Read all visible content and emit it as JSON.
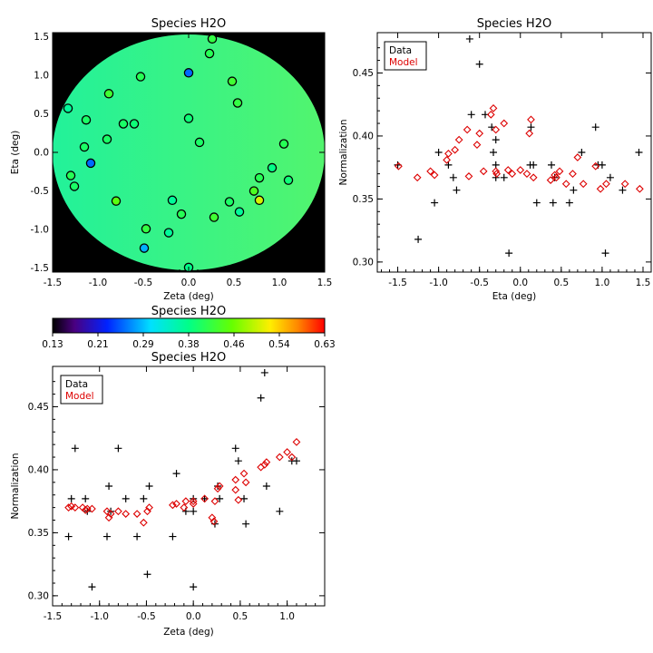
{
  "colors": {
    "data": "#000000",
    "model": "#dd0000",
    "map_background": "#000000",
    "map_fill_low": "#22f29a",
    "map_fill_high": "#52f46e"
  },
  "chart_data": [
    {
      "id": "map",
      "type": "scatter",
      "title": "Species H2O",
      "xlabel": "Zeta (deg)",
      "ylabel": "Eta (deg)",
      "xlim": [
        -1.5,
        1.5
      ],
      "ylim": [
        -1.55,
        1.55
      ],
      "xticks": [
        "-1.5",
        "-1.0",
        "-0.5",
        "0.0",
        "0.5",
        "1.0",
        "1.5"
      ],
      "yticks": [
        "-1.5",
        "-1.0",
        "-0.5",
        "0.0",
        "0.5",
        "1.0",
        "1.5"
      ],
      "background": "black with circular colour-mapped field",
      "points": [
        {
          "x": 0.26,
          "y": 1.47,
          "v": 0.42
        },
        {
          "x": 0.23,
          "y": 1.28,
          "v": 0.41
        },
        {
          "x": -0.53,
          "y": 0.98,
          "v": 0.41
        },
        {
          "x": 0.0,
          "y": 1.03,
          "v": 0.26
        },
        {
          "x": 0.48,
          "y": 0.92,
          "v": 0.43
        },
        {
          "x": -0.88,
          "y": 0.76,
          "v": 0.43
        },
        {
          "x": 0.54,
          "y": 0.64,
          "v": 0.42
        },
        {
          "x": -1.33,
          "y": 0.57,
          "v": 0.37
        },
        {
          "x": -1.13,
          "y": 0.42,
          "v": 0.4
        },
        {
          "x": 0.0,
          "y": 0.44,
          "v": 0.39
        },
        {
          "x": -0.72,
          "y": 0.37,
          "v": 0.4
        },
        {
          "x": -0.6,
          "y": 0.37,
          "v": 0.39
        },
        {
          "x": -0.9,
          "y": 0.17,
          "v": 0.4
        },
        {
          "x": 0.12,
          "y": 0.13,
          "v": 0.4
        },
        {
          "x": -1.15,
          "y": 0.07,
          "v": 0.4
        },
        {
          "x": 1.05,
          "y": 0.11,
          "v": 0.41
        },
        {
          "x": -1.08,
          "y": -0.14,
          "v": 0.26
        },
        {
          "x": 0.92,
          "y": -0.2,
          "v": 0.38
        },
        {
          "x": -1.3,
          "y": -0.3,
          "v": 0.41
        },
        {
          "x": 0.78,
          "y": -0.33,
          "v": 0.41
        },
        {
          "x": 1.1,
          "y": -0.36,
          "v": 0.39
        },
        {
          "x": -1.26,
          "y": -0.44,
          "v": 0.4
        },
        {
          "x": 0.72,
          "y": -0.5,
          "v": 0.44
        },
        {
          "x": -0.8,
          "y": -0.63,
          "v": 0.45
        },
        {
          "x": 0.78,
          "y": -0.62,
          "v": 0.51
        },
        {
          "x": -0.18,
          "y": -0.62,
          "v": 0.37
        },
        {
          "x": 0.45,
          "y": -0.64,
          "v": 0.4
        },
        {
          "x": 0.56,
          "y": -0.77,
          "v": 0.37
        },
        {
          "x": -0.08,
          "y": -0.8,
          "v": 0.41
        },
        {
          "x": 0.28,
          "y": -0.84,
          "v": 0.43
        },
        {
          "x": -0.47,
          "y": -0.99,
          "v": 0.42
        },
        {
          "x": -0.22,
          "y": -1.04,
          "v": 0.37
        },
        {
          "x": -0.49,
          "y": -1.24,
          "v": 0.29
        },
        {
          "x": 0.0,
          "y": -1.49,
          "v": 0.38
        }
      ]
    },
    {
      "id": "colorbar",
      "type": "colorbar",
      "title": "Species H2O",
      "vmin": 0.13,
      "vmax": 0.63,
      "tick_labels": [
        "0.13",
        "0.21",
        "0.29",
        "0.38",
        "0.46",
        "0.54",
        "0.63"
      ],
      "colormap": "rainbow"
    },
    {
      "id": "eta_plot",
      "type": "scatter",
      "title": "Species H2O",
      "xlabel": "Eta (deg)",
      "ylabel": "Normalization",
      "xlim": [
        -1.75,
        1.6
      ],
      "ylim": [
        0.292,
        0.482
      ],
      "xticks": [
        "-1.5",
        "-1.0",
        "-0.5",
        "0.0",
        "0.5",
        "1.0",
        "1.5"
      ],
      "yticks": [
        "0.30",
        "0.35",
        "0.40",
        "0.45"
      ],
      "legend": {
        "placement": "top-left",
        "entries": [
          "Data",
          "Model"
        ]
      },
      "series": [
        {
          "name": "Data",
          "marker": "plus",
          "points": [
            [
              -1.5,
              0.377
            ],
            [
              -1.25,
              0.318
            ],
            [
              -1.05,
              0.347
            ],
            [
              -1.0,
              0.387
            ],
            [
              -0.88,
              0.377
            ],
            [
              -0.82,
              0.367
            ],
            [
              -0.78,
              0.357
            ],
            [
              -0.62,
              0.477
            ],
            [
              -0.6,
              0.417
            ],
            [
              -0.5,
              0.457
            ],
            [
              -0.43,
              0.417
            ],
            [
              -0.35,
              0.407
            ],
            [
              -0.33,
              0.387
            ],
            [
              -0.3,
              0.397
            ],
            [
              -0.3,
              0.377
            ],
            [
              -0.3,
              0.367
            ],
            [
              -0.2,
              0.367
            ],
            [
              -0.14,
              0.307
            ],
            [
              0.12,
              0.377
            ],
            [
              0.13,
              0.407
            ],
            [
              0.16,
              0.377
            ],
            [
              0.2,
              0.347
            ],
            [
              0.38,
              0.377
            ],
            [
              0.4,
              0.347
            ],
            [
              0.42,
              0.367
            ],
            [
              0.6,
              0.347
            ],
            [
              0.65,
              0.357
            ],
            [
              0.75,
              0.387
            ],
            [
              0.92,
              0.407
            ],
            [
              0.95,
              0.377
            ],
            [
              1.0,
              0.377
            ],
            [
              1.04,
              0.307
            ],
            [
              1.1,
              0.367
            ],
            [
              1.25,
              0.357
            ],
            [
              1.45,
              0.387
            ]
          ]
        },
        {
          "name": "Model",
          "marker": "diamond",
          "points": [
            [
              -1.49,
              0.376
            ],
            [
              -1.26,
              0.367
            ],
            [
              -1.1,
              0.372
            ],
            [
              -1.05,
              0.369
            ],
            [
              -0.9,
              0.381
            ],
            [
              -0.88,
              0.386
            ],
            [
              -0.8,
              0.389
            ],
            [
              -0.75,
              0.397
            ],
            [
              -0.65,
              0.405
            ],
            [
              -0.63,
              0.368
            ],
            [
              -0.53,
              0.393
            ],
            [
              -0.5,
              0.402
            ],
            [
              -0.45,
              0.372
            ],
            [
              -0.36,
              0.417
            ],
            [
              -0.33,
              0.422
            ],
            [
              -0.3,
              0.405
            ],
            [
              -0.3,
              0.372
            ],
            [
              -0.29,
              0.37
            ],
            [
              -0.2,
              0.41
            ],
            [
              -0.15,
              0.373
            ],
            [
              -0.1,
              0.37
            ],
            [
              0.0,
              0.373
            ],
            [
              0.08,
              0.37
            ],
            [
              0.11,
              0.402
            ],
            [
              0.13,
              0.413
            ],
            [
              0.16,
              0.367
            ],
            [
              0.37,
              0.365
            ],
            [
              0.42,
              0.369
            ],
            [
              0.44,
              0.367
            ],
            [
              0.48,
              0.372
            ],
            [
              0.56,
              0.362
            ],
            [
              0.64,
              0.37
            ],
            [
              0.7,
              0.383
            ],
            [
              0.77,
              0.362
            ],
            [
              0.92,
              0.376
            ],
            [
              0.98,
              0.358
            ],
            [
              1.05,
              0.362
            ],
            [
              1.28,
              0.362
            ],
            [
              1.46,
              0.358
            ]
          ]
        }
      ]
    },
    {
      "id": "zeta_plot",
      "type": "scatter",
      "title": "Species H2O",
      "xlabel": "Zeta (deg)",
      "ylabel": "Normalization",
      "xlim": [
        -1.5,
        1.4
      ],
      "ylim": [
        0.292,
        0.482
      ],
      "xticks": [
        "-1.5",
        "-1.0",
        "-0.5",
        "0.0",
        "0.5",
        "1.0"
      ],
      "yticks": [
        "0.30",
        "0.35",
        "0.40",
        "0.45"
      ],
      "legend": {
        "placement": "top-left",
        "entries": [
          "Data",
          "Model"
        ]
      },
      "series": [
        {
          "name": "Data",
          "marker": "plus",
          "points": [
            [
              -1.33,
              0.347
            ],
            [
              -1.3,
              0.377
            ],
            [
              -1.26,
              0.417
            ],
            [
              -1.15,
              0.377
            ],
            [
              -1.13,
              0.367
            ],
            [
              -1.08,
              0.307
            ],
            [
              -0.9,
              0.387
            ],
            [
              -0.92,
              0.347
            ],
            [
              -0.88,
              0.367
            ],
            [
              -0.8,
              0.417
            ],
            [
              -0.72,
              0.377
            ],
            [
              -0.6,
              0.347
            ],
            [
              -0.53,
              0.377
            ],
            [
              -0.49,
              0.317
            ],
            [
              -0.47,
              0.387
            ],
            [
              -0.22,
              0.347
            ],
            [
              -0.18,
              0.397
            ],
            [
              -0.08,
              0.367
            ],
            [
              0.0,
              0.377
            ],
            [
              0.0,
              0.367
            ],
            [
              0.0,
              0.307
            ],
            [
              0.12,
              0.377
            ],
            [
              0.23,
              0.357
            ],
            [
              0.26,
              0.387
            ],
            [
              0.28,
              0.377
            ],
            [
              0.45,
              0.417
            ],
            [
              0.48,
              0.407
            ],
            [
              0.54,
              0.377
            ],
            [
              0.56,
              0.357
            ],
            [
              0.72,
              0.457
            ],
            [
              0.76,
              0.477
            ],
            [
              0.78,
              0.387
            ],
            [
              0.92,
              0.367
            ],
            [
              1.05,
              0.407
            ],
            [
              1.1,
              0.407
            ]
          ]
        },
        {
          "name": "Model",
          "marker": "diamond",
          "points": [
            [
              -1.33,
              0.37
            ],
            [
              -1.3,
              0.371
            ],
            [
              -1.26,
              0.37
            ],
            [
              -1.18,
              0.37
            ],
            [
              -1.15,
              0.368
            ],
            [
              -1.13,
              0.369
            ],
            [
              -1.08,
              0.369
            ],
            [
              -0.92,
              0.367
            ],
            [
              -0.9,
              0.362
            ],
            [
              -0.88,
              0.365
            ],
            [
              -0.8,
              0.367
            ],
            [
              -0.72,
              0.365
            ],
            [
              -0.6,
              0.365
            ],
            [
              -0.53,
              0.358
            ],
            [
              -0.49,
              0.367
            ],
            [
              -0.47,
              0.37
            ],
            [
              -0.22,
              0.372
            ],
            [
              -0.18,
              0.373
            ],
            [
              -0.1,
              0.37
            ],
            [
              -0.08,
              0.375
            ],
            [
              0.0,
              0.375
            ],
            [
              0.0,
              0.373
            ],
            [
              0.12,
              0.377
            ],
            [
              0.2,
              0.362
            ],
            [
              0.22,
              0.359
            ],
            [
              0.23,
              0.375
            ],
            [
              0.26,
              0.385
            ],
            [
              0.28,
              0.387
            ],
            [
              0.45,
              0.384
            ],
            [
              0.45,
              0.392
            ],
            [
              0.48,
              0.376
            ],
            [
              0.54,
              0.397
            ],
            [
              0.56,
              0.39
            ],
            [
              0.72,
              0.402
            ],
            [
              0.76,
              0.404
            ],
            [
              0.78,
              0.406
            ],
            [
              0.92,
              0.41
            ],
            [
              1.0,
              0.414
            ],
            [
              1.05,
              0.41
            ],
            [
              1.1,
              0.422
            ]
          ]
        }
      ]
    }
  ]
}
